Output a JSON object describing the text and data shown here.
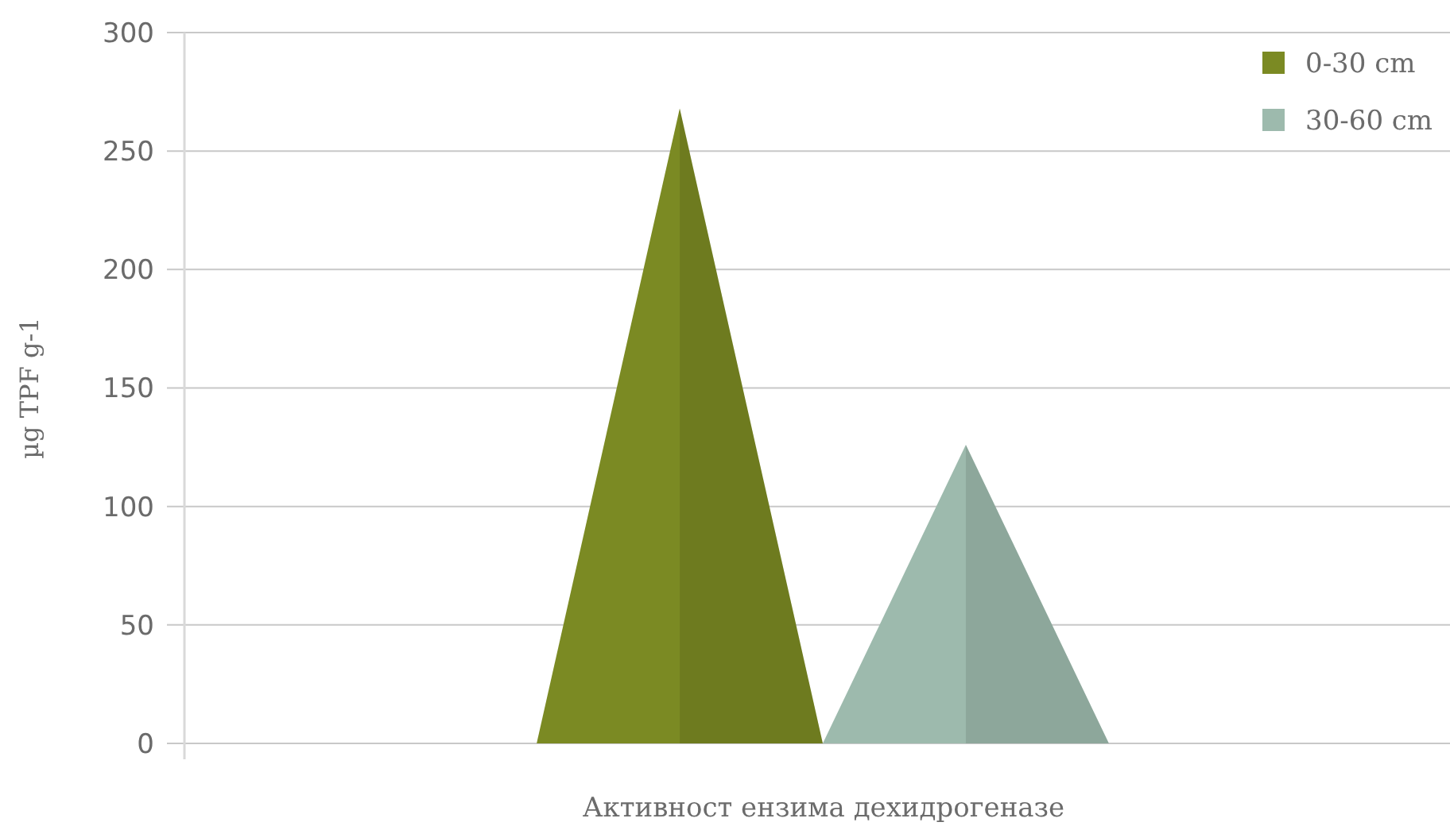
{
  "chart_data": {
    "type": "bar",
    "xlabel": "Активност ензима дехидрогеназе",
    "ylabel": "µg TPF g-1",
    "categories": [
      null
    ],
    "series": [
      {
        "name": "0-30 cm",
        "color": "#7b8a23",
        "values": [
          268
        ]
      },
      {
        "name": "30-60 cm",
        "color": "#9dbaad",
        "values": [
          126
        ]
      }
    ],
    "ylim": [
      0,
      300
    ],
    "yticks": [
      0,
      50,
      100,
      150,
      200,
      250,
      300
    ],
    "grid": "y",
    "legend": "top right"
  }
}
